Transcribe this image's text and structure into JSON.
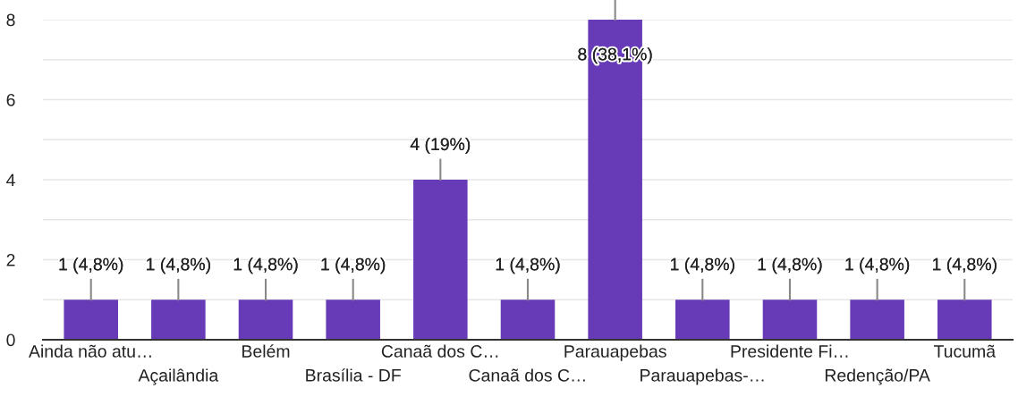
{
  "chart_data": {
    "type": "bar",
    "categories": [
      "Ainda não atu…",
      "Açailândia",
      "Belém",
      "Brasília - DF",
      "Canaã dos C…",
      "Canaã dos C…",
      "Parauapebas",
      "Parauapebas-…",
      "Presidente Fi…",
      "Redenção/PA",
      "Tucumã"
    ],
    "values": [
      1,
      1,
      1,
      1,
      4,
      1,
      8,
      1,
      1,
      1,
      1
    ],
    "value_labels": [
      "1 (4,8%)",
      "1 (4,8%)",
      "1 (4,8%)",
      "1 (4,8%)",
      "4 (19%)",
      "1 (4,8%)",
      "8 (38,1%)",
      "1 (4,8%)",
      "1 (4,8%)",
      "1 (4,8%)",
      "1 (4,8%)"
    ],
    "color": "#673ab7",
    "ylim": [
      0,
      8
    ],
    "yticks": [
      0,
      {
        "value": 1,
        "label": null
      },
      2,
      {
        "value": 3,
        "label": null
      },
      4,
      {
        "value": 5,
        "label": null
      },
      6,
      {
        "value": 7,
        "label": null
      },
      8
    ],
    "grid": "y",
    "legend": false
  }
}
